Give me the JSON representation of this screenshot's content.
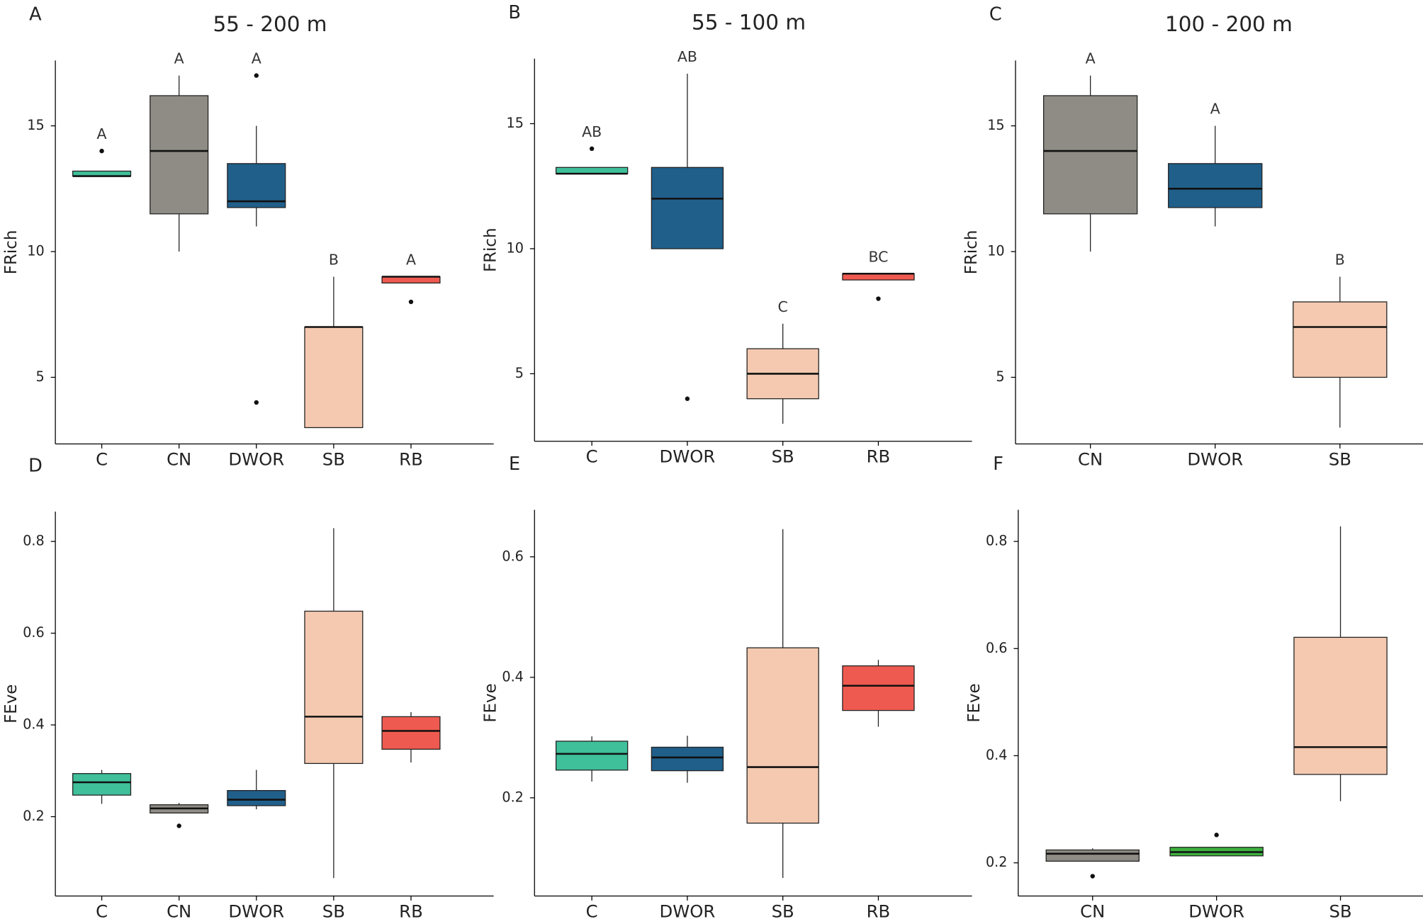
{
  "chart_data": [
    {
      "type": "box",
      "panel": "A",
      "title": "55 - 200 m",
      "ylabel": "FRich",
      "categories": [
        "C",
        "CN",
        "DWOR",
        "SB",
        "RB"
      ],
      "colors": [
        "#3fbf9a",
        "#8f8c85",
        "#205f8a",
        "#f4c9b0",
        "#ef5a50"
      ],
      "ylim": [
        2.35,
        17.6
      ],
      "yticks": [
        5,
        10,
        15
      ],
      "boxes": [
        {
          "min": 13,
          "q1": 13,
          "median": 13,
          "q3": 13.2,
          "max": 13.2,
          "outliers": [
            14
          ],
          "letter": "A"
        },
        {
          "min": 10,
          "q1": 11.5,
          "median": 14,
          "q3": 16.2,
          "max": 17,
          "outliers": [],
          "letter": "A"
        },
        {
          "min": 11,
          "q1": 11.75,
          "median": 12,
          "q3": 13.5,
          "max": 15,
          "outliers": [
            17,
            4
          ],
          "letter": "A"
        },
        {
          "min": 3,
          "q1": 3,
          "median": 7,
          "q3": 7,
          "max": 9,
          "outliers": [],
          "letter": "B"
        },
        {
          "min": 8.75,
          "q1": 8.75,
          "median": 9,
          "q3": 9,
          "max": 9,
          "outliers": [
            8
          ],
          "letter": "A"
        }
      ]
    },
    {
      "type": "box",
      "panel": "B",
      "title": "55 - 100 m",
      "ylabel": "FRich",
      "categories": [
        "C",
        "DWOR",
        "SB",
        "RB"
      ],
      "colors": [
        "#3fbf9a",
        "#205f8a",
        "#f4c9b0",
        "#ef5a50"
      ],
      "ylim": [
        2.3,
        17.6
      ],
      "yticks": [
        5,
        10,
        15
      ],
      "boxes": [
        {
          "min": 13,
          "q1": 13,
          "median": 13,
          "q3": 13.25,
          "max": 13.25,
          "outliers": [
            14
          ],
          "letter": "AB"
        },
        {
          "min": 10,
          "q1": 10,
          "median": 12,
          "q3": 13.25,
          "max": 17,
          "outliers": [
            4
          ],
          "letter": "AB"
        },
        {
          "min": 3,
          "q1": 4,
          "median": 5,
          "q3": 6,
          "max": 7,
          "outliers": [],
          "letter": "C"
        },
        {
          "min": 8.75,
          "q1": 8.75,
          "median": 9,
          "q3": 9,
          "max": 9,
          "outliers": [
            8
          ],
          "letter": "BC"
        }
      ]
    },
    {
      "type": "box",
      "panel": "C",
      "title": "100 - 200 m",
      "ylabel": "FRich",
      "categories": [
        "CN",
        "DWOR",
        "SB"
      ],
      "colors": [
        "#8f8c85",
        "#205f8a",
        "#f4c9b0"
      ],
      "ylim": [
        2.35,
        17.6
      ],
      "yticks": [
        5,
        10,
        15
      ],
      "boxes": [
        {
          "min": 10,
          "q1": 11.5,
          "median": 14,
          "q3": 16.2,
          "max": 17,
          "outliers": [],
          "letter": "A"
        },
        {
          "min": 11,
          "q1": 11.75,
          "median": 12.5,
          "q3": 13.5,
          "max": 15,
          "outliers": [],
          "letter": "A"
        },
        {
          "min": 3,
          "q1": 5,
          "median": 7,
          "q3": 8,
          "max": 9,
          "outliers": [],
          "letter": "B"
        }
      ]
    },
    {
      "type": "box",
      "panel": "D",
      "ylabel": "FEve",
      "categories": [
        "C",
        "CN",
        "DWOR",
        "SB",
        "RB"
      ],
      "colors": [
        "#3fbf9a",
        "#8f8c85",
        "#205f8a",
        "#f4c9b0",
        "#ef5a50"
      ],
      "ylim": [
        0.027,
        0.865
      ],
      "yticks": [
        0.2,
        0.4,
        0.6,
        0.8
      ],
      "boxes": [
        {
          "min": 0.228,
          "q1": 0.247,
          "median": 0.275,
          "q3": 0.294,
          "max": 0.302,
          "outliers": []
        },
        {
          "min": 0.208,
          "q1": 0.208,
          "median": 0.218,
          "q3": 0.226,
          "max": 0.23,
          "outliers": [
            0.18
          ]
        },
        {
          "min": 0.216,
          "q1": 0.224,
          "median": 0.237,
          "q3": 0.257,
          "max": 0.302,
          "outliers": []
        },
        {
          "min": 0.066,
          "q1": 0.316,
          "median": 0.418,
          "q3": 0.648,
          "max": 0.829,
          "outliers": []
        },
        {
          "min": 0.318,
          "q1": 0.347,
          "median": 0.387,
          "q3": 0.418,
          "max": 0.428,
          "outliers": []
        }
      ]
    },
    {
      "type": "box",
      "panel": "E",
      "ylabel": "FEve",
      "categories": [
        "C",
        "DWOR",
        "SB",
        "RB"
      ],
      "colors": [
        "#3fbf9a",
        "#205f8a",
        "#f4c9b0",
        "#ef5a50"
      ],
      "ylim": [
        0.037,
        0.678
      ],
      "yticks": [
        0.2,
        0.4,
        0.6
      ],
      "boxes": [
        {
          "min": 0.227,
          "q1": 0.246,
          "median": 0.273,
          "q3": 0.294,
          "max": 0.302,
          "outliers": []
        },
        {
          "min": 0.225,
          "q1": 0.245,
          "median": 0.267,
          "q3": 0.284,
          "max": 0.303,
          "outliers": []
        },
        {
          "min": 0.067,
          "q1": 0.158,
          "median": 0.251,
          "q3": 0.449,
          "max": 0.646,
          "outliers": []
        },
        {
          "min": 0.318,
          "q1": 0.345,
          "median": 0.386,
          "q3": 0.419,
          "max": 0.429,
          "outliers": []
        }
      ]
    },
    {
      "type": "box",
      "panel": "F",
      "ylabel": "FEve",
      "categories": [
        "CN",
        "DWOR",
        "SB"
      ],
      "colors": [
        "#8f8c85",
        "#3db03f",
        "#f4c9b0"
      ],
      "ylim": [
        0.138,
        0.859
      ],
      "yticks": [
        0.2,
        0.4,
        0.6,
        0.8
      ],
      "boxes": [
        {
          "min": 0.203,
          "q1": 0.203,
          "median": 0.217,
          "q3": 0.224,
          "max": 0.227,
          "outliers": [
            0.175
          ]
        },
        {
          "min": 0.213,
          "q1": 0.213,
          "median": 0.22,
          "q3": 0.229,
          "max": 0.229,
          "outliers": [
            0.252
          ]
        },
        {
          "min": 0.315,
          "q1": 0.365,
          "median": 0.416,
          "q3": 0.621,
          "max": 0.828,
          "outliers": []
        }
      ]
    }
  ]
}
